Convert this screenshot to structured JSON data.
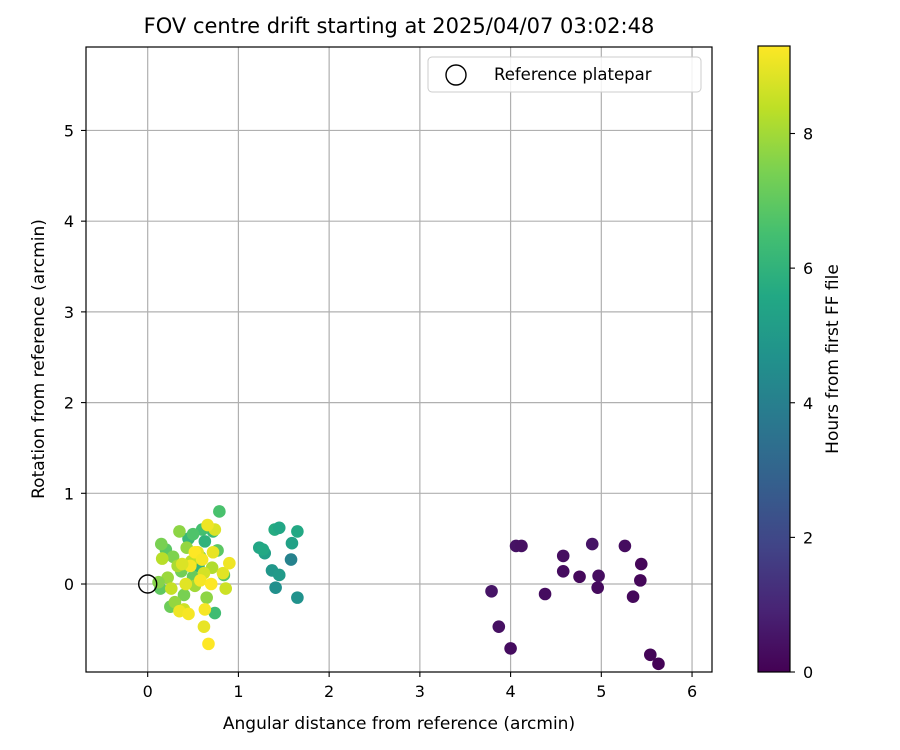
{
  "chart_data": {
    "type": "scatter",
    "title": "FOV centre drift starting at 2025/04/07 03:02:48",
    "xlabel": "Angular distance from reference (arcmin)",
    "ylabel": "Rotation from reference (arcmin)",
    "xlim": [
      -0.68,
      6.22
    ],
    "ylim": [
      -0.97,
      5.92
    ],
    "xticks": [
      0,
      1,
      2,
      3,
      4,
      5,
      6
    ],
    "yticks": [
      0,
      1,
      2,
      3,
      4,
      5
    ],
    "grid": true,
    "legend": {
      "position": "top-right",
      "entries": [
        "Reference platepar"
      ]
    },
    "reference_point": {
      "x": 0,
      "y": 0
    },
    "colorbar": {
      "label": "Hours from first FF file",
      "range": [
        0,
        9.3
      ],
      "ticks": [
        0,
        2,
        4,
        6,
        8
      ],
      "colormap": "viridis"
    },
    "series": [
      {
        "points": [
          [
            5.63,
            -0.88,
            0.05
          ],
          [
            5.54,
            -0.78,
            0.1
          ],
          [
            4.0,
            -0.71,
            0.3
          ],
          [
            3.87,
            -0.47,
            0.4
          ],
          [
            3.79,
            -0.08,
            0.5
          ],
          [
            4.38,
            -0.11,
            0.3
          ],
          [
            5.35,
            -0.14,
            0.2
          ],
          [
            4.96,
            -0.04,
            0.25
          ],
          [
            5.43,
            0.04,
            0.15
          ],
          [
            4.76,
            0.08,
            0.2
          ],
          [
            4.97,
            0.09,
            0.35
          ],
          [
            4.58,
            0.14,
            0.3
          ],
          [
            5.44,
            0.22,
            0.15
          ],
          [
            4.58,
            0.31,
            0.35
          ],
          [
            4.06,
            0.42,
            0.45
          ],
          [
            4.12,
            0.42,
            0.4
          ],
          [
            4.9,
            0.44,
            0.5
          ],
          [
            5.26,
            0.42,
            0.3
          ],
          [
            1.41,
            -0.04,
            4.6
          ],
          [
            1.65,
            -0.15,
            4.7
          ],
          [
            1.37,
            0.15,
            4.9
          ],
          [
            1.45,
            0.1,
            5.0
          ],
          [
            1.58,
            0.27,
            4.1
          ],
          [
            1.29,
            0.34,
            5.2
          ],
          [
            1.23,
            0.4,
            5.5
          ],
          [
            1.27,
            0.38,
            5.6
          ],
          [
            1.59,
            0.45,
            5.3
          ],
          [
            1.4,
            0.6,
            5.7
          ],
          [
            1.45,
            0.62,
            5.5
          ],
          [
            1.65,
            0.58,
            5.6
          ],
          [
            0.79,
            0.8,
            6.6
          ],
          [
            0.63,
            0.47,
            6.0
          ],
          [
            0.72,
            0.58,
            6.3
          ],
          [
            0.6,
            0.6,
            6.5
          ],
          [
            0.45,
            0.5,
            6.2
          ],
          [
            0.56,
            0.2,
            6.1
          ],
          [
            0.74,
            -0.32,
            6.4
          ],
          [
            0.84,
            0.1,
            6.8
          ],
          [
            0.77,
            0.37,
            6.9
          ],
          [
            0.5,
            0.55,
            6.7
          ],
          [
            0.14,
            -0.05,
            7.0
          ],
          [
            0.25,
            -0.25,
            7.2
          ],
          [
            0.2,
            0.38,
            6.9
          ],
          [
            0.35,
            0.58,
            7.7
          ],
          [
            0.15,
            0.44,
            7.4
          ],
          [
            0.37,
            0.14,
            7.3
          ],
          [
            0.5,
            0.08,
            7.1
          ],
          [
            0.28,
            0.3,
            7.5
          ],
          [
            0.58,
            0.3,
            7.6
          ],
          [
            0.4,
            -0.12,
            7.4
          ],
          [
            0.3,
            -0.2,
            7.8
          ],
          [
            0.22,
            0.07,
            7.9
          ],
          [
            0.12,
            0.02,
            7.6
          ],
          [
            0.43,
            0.4,
            7.8
          ],
          [
            0.65,
            -0.15,
            7.7
          ],
          [
            0.33,
            0.2,
            8.1
          ],
          [
            0.16,
            0.28,
            8.3
          ],
          [
            0.52,
            -0.02,
            8.0
          ],
          [
            0.71,
            0.18,
            8.2
          ],
          [
            0.48,
            0.25,
            8.4
          ],
          [
            0.26,
            -0.05,
            8.5
          ],
          [
            0.4,
            -0.28,
            8.6
          ],
          [
            0.62,
            0.12,
            8.7
          ],
          [
            0.86,
            -0.05,
            8.6
          ],
          [
            0.74,
            0.6,
            8.8
          ],
          [
            0.66,
            0.65,
            9.1
          ],
          [
            0.55,
            0.35,
            9.0
          ],
          [
            0.47,
            0.2,
            9.2
          ],
          [
            0.35,
            -0.3,
            9.1
          ],
          [
            0.45,
            -0.33,
            9.2
          ],
          [
            0.62,
            -0.47,
            9.0
          ],
          [
            0.67,
            -0.66,
            9.3
          ],
          [
            0.83,
            0.12,
            8.9
          ],
          [
            0.9,
            0.23,
            9.1
          ],
          [
            0.58,
            0.04,
            9.2
          ],
          [
            0.63,
            -0.28,
            9.2
          ],
          [
            0.42,
            0.0,
            8.9
          ],
          [
            0.72,
            0.35,
            9.0
          ],
          [
            0.52,
            0.35,
            9.3
          ],
          [
            0.6,
            0.27,
            9.2
          ],
          [
            0.38,
            0.22,
            8.8
          ],
          [
            0.7,
            0.0,
            9.3
          ]
        ]
      }
    ]
  }
}
